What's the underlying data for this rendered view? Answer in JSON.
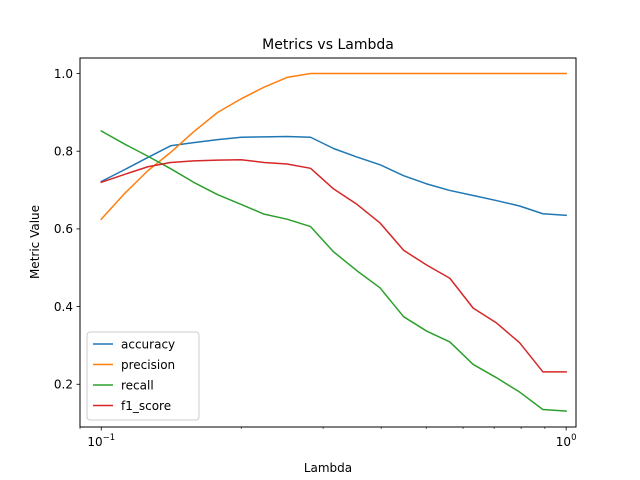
{
  "chart_data": {
    "type": "line",
    "title": "Metrics vs Lambda",
    "xlabel": "Lambda",
    "ylabel": "Metric Value",
    "xscale": "log",
    "xlim": [
      0.09,
      1.05
    ],
    "ylim": [
      0.09,
      1.04
    ],
    "xticks": [
      {
        "value": 0.1,
        "base": "10",
        "exponent": "−1"
      },
      {
        "value": 1.0,
        "base": "10",
        "exponent": "0"
      }
    ],
    "yticks": [
      {
        "value": 0.2,
        "label": "0.2"
      },
      {
        "value": 0.4,
        "label": "0.4"
      },
      {
        "value": 0.6,
        "label": "0.6"
      },
      {
        "value": 0.8,
        "label": "0.8"
      },
      {
        "value": 1.0,
        "label": "1.0"
      }
    ],
    "grid": false,
    "legend_position": "lower-left",
    "x": [
      0.1,
      0.112,
      0.126,
      0.141,
      0.158,
      0.178,
      0.2,
      0.224,
      0.251,
      0.282,
      0.316,
      0.355,
      0.398,
      0.447,
      0.501,
      0.562,
      0.631,
      0.708,
      0.794,
      0.891,
      1.0
    ],
    "series": [
      {
        "name": "accuracy",
        "color": "#1f77b4",
        "values": [
          0.722,
          0.752,
          0.784,
          0.814,
          0.822,
          0.83,
          0.836,
          0.837,
          0.838,
          0.836,
          0.807,
          0.785,
          0.765,
          0.737,
          0.716,
          0.699,
          0.686,
          0.673,
          0.659,
          0.639,
          0.635
        ]
      },
      {
        "name": "precision",
        "color": "#ff7f0e",
        "values": [
          0.625,
          0.69,
          0.75,
          0.797,
          0.85,
          0.9,
          0.935,
          0.965,
          0.99,
          1.0,
          1.0,
          1.0,
          1.0,
          1.0,
          1.0,
          1.0,
          1.0,
          1.0,
          1.0,
          1.0,
          1.0
        ]
      },
      {
        "name": "recall",
        "color": "#2ca02c",
        "values": [
          0.852,
          0.819,
          0.787,
          0.755,
          0.72,
          0.688,
          0.663,
          0.638,
          0.625,
          0.606,
          0.541,
          0.492,
          0.448,
          0.374,
          0.337,
          0.309,
          0.251,
          0.217,
          0.18,
          0.135,
          0.131
        ]
      },
      {
        "name": "f1_score",
        "color": "#d62728",
        "values": [
          0.72,
          0.74,
          0.76,
          0.771,
          0.775,
          0.777,
          0.778,
          0.771,
          0.767,
          0.756,
          0.703,
          0.663,
          0.615,
          0.545,
          0.507,
          0.473,
          0.396,
          0.358,
          0.307,
          0.232,
          0.232
        ]
      }
    ]
  }
}
